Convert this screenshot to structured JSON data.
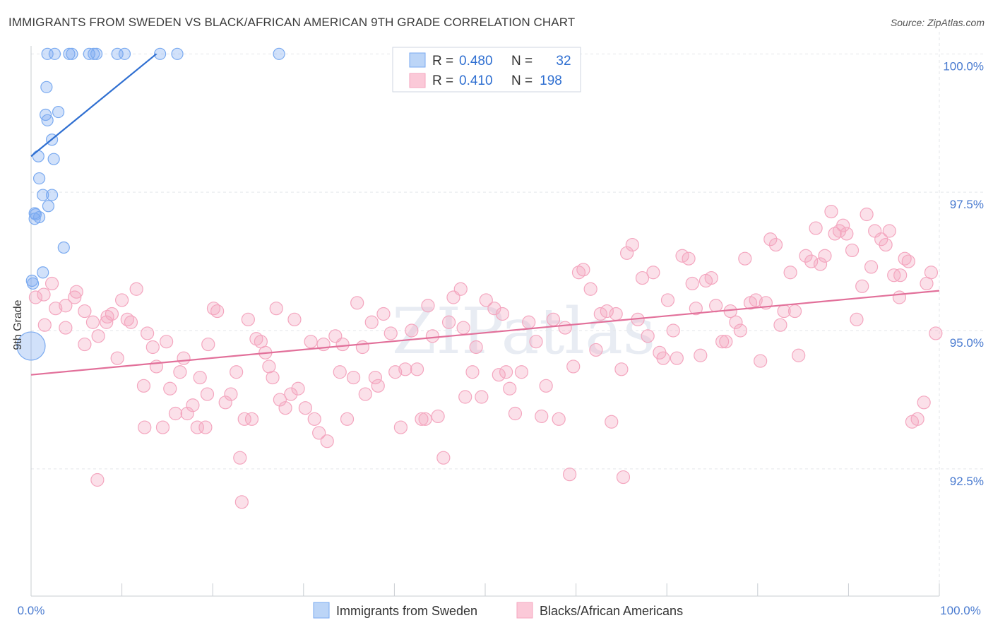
{
  "title": "IMMIGRANTS FROM SWEDEN VS BLACK/AFRICAN AMERICAN 9TH GRADE CORRELATION CHART",
  "source": "Source: ZipAtlas.com",
  "watermark": "ZIPatlas",
  "chart_data": {
    "type": "scatter",
    "ylabel": "9th Grade",
    "xlim": [
      0,
      100
    ],
    "ylim": [
      90.2,
      100.4
    ],
    "x_tick_labels": [
      "0.0%",
      "100.0%"
    ],
    "y_ticks": [
      {
        "value": 100.0,
        "label": "100.0%"
      },
      {
        "value": 97.5,
        "label": "97.5%"
      },
      {
        "value": 95.0,
        "label": "95.0%"
      },
      {
        "value": 92.5,
        "label": "92.5%"
      }
    ],
    "grid": true,
    "legend": {
      "r_label": "R =",
      "n_label": "N =",
      "entries": [
        {
          "r": "0.480",
          "n": "32",
          "color": "#7aaaf0"
        },
        {
          "r": "0.410",
          "n": "198",
          "color": "#f4a6bf"
        }
      ]
    },
    "series": [
      {
        "name": "Immigrants from Sweden",
        "color": "#7aaaf0",
        "trend": {
          "x": [
            0.0,
            13.8
          ],
          "y": [
            98.15,
            100.0
          ]
        },
        "points": [
          [
            1.8,
            100
          ],
          [
            2.6,
            100
          ],
          [
            4.2,
            100
          ],
          [
            4.5,
            100
          ],
          [
            6.4,
            100
          ],
          [
            6.9,
            100
          ],
          [
            7.2,
            100
          ],
          [
            9.5,
            100
          ],
          [
            10.3,
            100
          ],
          [
            14.2,
            100
          ],
          [
            16.1,
            100
          ],
          [
            27.3,
            100
          ],
          [
            1.7,
            99.4
          ],
          [
            1.6,
            98.9
          ],
          [
            3.0,
            98.95
          ],
          [
            1.8,
            98.8
          ],
          [
            2.3,
            98.45
          ],
          [
            2.5,
            98.1
          ],
          [
            0.8,
            98.15
          ],
          [
            0.9,
            97.75
          ],
          [
            1.3,
            97.45
          ],
          [
            2.3,
            97.45
          ],
          [
            1.9,
            97.25
          ],
          [
            0.4,
            97.12
          ],
          [
            0.5,
            97.1
          ],
          [
            0.9,
            97.05
          ],
          [
            0.4,
            97.02
          ],
          [
            3.6,
            96.5
          ],
          [
            1.3,
            96.05
          ],
          [
            0.1,
            95.9
          ],
          [
            0.2,
            95.85
          ],
          [
            0.0,
            94.72
          ]
        ]
      },
      {
        "name": "Blacks/African Americans",
        "color": "#f4a6bf",
        "trend": {
          "x": [
            0.0,
            100.0
          ],
          "y": [
            94.2,
            95.72
          ]
        },
        "points": [
          [
            0.5,
            95.6
          ],
          [
            1.4,
            95.65
          ],
          [
            2.3,
            95.85
          ],
          [
            2.7,
            95.4
          ],
          [
            3.8,
            95.45
          ],
          [
            4.8,
            95.6
          ],
          [
            5.0,
            95.7
          ],
          [
            1.5,
            95.1
          ],
          [
            3.8,
            95.05
          ],
          [
            5.9,
            95.35
          ],
          [
            6.8,
            95.15
          ],
          [
            7.4,
            94.9
          ],
          [
            5.9,
            94.75
          ],
          [
            8.4,
            95.25
          ],
          [
            8.3,
            95.15
          ],
          [
            8.9,
            95.3
          ],
          [
            9.5,
            94.5
          ],
          [
            10.0,
            95.55
          ],
          [
            10.6,
            95.2
          ],
          [
            11.0,
            95.15
          ],
          [
            11.6,
            95.75
          ],
          [
            12.4,
            94.0
          ],
          [
            12.5,
            93.25
          ],
          [
            12.8,
            94.95
          ],
          [
            13.4,
            94.7
          ],
          [
            13.8,
            94.35
          ],
          [
            14.5,
            93.25
          ],
          [
            14.9,
            94.8
          ],
          [
            15.3,
            93.95
          ],
          [
            15.9,
            93.5
          ],
          [
            16.4,
            94.25
          ],
          [
            16.8,
            94.5
          ],
          [
            17.2,
            93.5
          ],
          [
            17.8,
            93.65
          ],
          [
            18.3,
            93.25
          ],
          [
            18.6,
            94.15
          ],
          [
            19.2,
            93.25
          ],
          [
            19.4,
            93.85
          ],
          [
            19.5,
            94.75
          ],
          [
            20.1,
            95.4
          ],
          [
            20.5,
            95.35
          ],
          [
            21.4,
            93.7
          ],
          [
            22.0,
            93.85
          ],
          [
            22.6,
            94.25
          ],
          [
            23.0,
            92.7
          ],
          [
            23.5,
            93.4
          ],
          [
            23.9,
            95.2
          ],
          [
            24.3,
            93.4
          ],
          [
            24.8,
            94.85
          ],
          [
            25.3,
            94.8
          ],
          [
            25.8,
            94.6
          ],
          [
            26.2,
            94.35
          ],
          [
            26.6,
            94.15
          ],
          [
            27.0,
            95.4
          ],
          [
            27.4,
            93.75
          ],
          [
            28.0,
            93.6
          ],
          [
            28.6,
            93.85
          ],
          [
            29.0,
            95.2
          ],
          [
            29.4,
            93.95
          ],
          [
            30.2,
            93.6
          ],
          [
            30.8,
            94.8
          ],
          [
            31.2,
            93.4
          ],
          [
            31.7,
            93.15
          ],
          [
            32.2,
            94.75
          ],
          [
            32.6,
            93.0
          ],
          [
            33.5,
            94.9
          ],
          [
            34.0,
            94.25
          ],
          [
            34.3,
            94.75
          ],
          [
            34.8,
            93.4
          ],
          [
            35.5,
            94.15
          ],
          [
            35.9,
            95.5
          ],
          [
            36.5,
            94.7
          ],
          [
            36.8,
            93.85
          ],
          [
            37.5,
            95.15
          ],
          [
            37.9,
            94.15
          ],
          [
            38.2,
            94.0
          ],
          [
            38.8,
            95.3
          ],
          [
            39.6,
            94.95
          ],
          [
            40.1,
            94.25
          ],
          [
            40.7,
            93.25
          ],
          [
            41.2,
            94.3
          ],
          [
            41.9,
            95.0
          ],
          [
            42.5,
            94.3
          ],
          [
            43.0,
            93.4
          ],
          [
            43.7,
            95.45
          ],
          [
            44.2,
            94.9
          ],
          [
            44.8,
            93.45
          ],
          [
            45.4,
            92.7
          ],
          [
            46.0,
            95.15
          ],
          [
            46.5,
            95.6
          ],
          [
            47.3,
            95.75
          ],
          [
            47.8,
            93.8
          ],
          [
            48.6,
            94.25
          ],
          [
            49.0,
            94.7
          ],
          [
            49.6,
            93.8
          ],
          [
            50.1,
            95.55
          ],
          [
            51.0,
            95.4
          ],
          [
            51.5,
            94.2
          ],
          [
            51.9,
            95.3
          ],
          [
            52.3,
            94.25
          ],
          [
            52.7,
            93.95
          ],
          [
            53.3,
            93.5
          ],
          [
            54.0,
            94.25
          ],
          [
            54.8,
            95.15
          ],
          [
            55.6,
            94.8
          ],
          [
            56.2,
            93.45
          ],
          [
            56.7,
            94.0
          ],
          [
            57.5,
            95.2
          ],
          [
            58.1,
            93.4
          ],
          [
            58.8,
            95.05
          ],
          [
            59.3,
            92.4
          ],
          [
            59.7,
            94.35
          ],
          [
            60.3,
            96.05
          ],
          [
            60.8,
            96.1
          ],
          [
            61.6,
            95.75
          ],
          [
            62.2,
            94.65
          ],
          [
            62.7,
            95.3
          ],
          [
            63.4,
            95.35
          ],
          [
            63.9,
            93.35
          ],
          [
            64.4,
            95.3
          ],
          [
            65.0,
            94.3
          ],
          [
            65.6,
            96.4
          ],
          [
            66.2,
            96.55
          ],
          [
            66.8,
            95.2
          ],
          [
            67.3,
            95.95
          ],
          [
            67.9,
            94.9
          ],
          [
            68.5,
            96.05
          ],
          [
            69.2,
            94.6
          ],
          [
            69.6,
            94.5
          ],
          [
            70.1,
            95.55
          ],
          [
            70.7,
            95.0
          ],
          [
            71.1,
            94.5
          ],
          [
            71.7,
            96.35
          ],
          [
            72.4,
            96.3
          ],
          [
            72.8,
            95.85
          ],
          [
            73.2,
            95.4
          ],
          [
            73.7,
            94.55
          ],
          [
            74.3,
            95.9
          ],
          [
            74.9,
            95.95
          ],
          [
            75.4,
            95.45
          ],
          [
            76.1,
            94.8
          ],
          [
            76.5,
            94.8
          ],
          [
            77.0,
            95.35
          ],
          [
            77.6,
            95.15
          ],
          [
            78.1,
            95.0
          ],
          [
            78.6,
            96.3
          ],
          [
            79.2,
            95.5
          ],
          [
            79.8,
            95.55
          ],
          [
            80.3,
            94.45
          ],
          [
            80.9,
            95.5
          ],
          [
            81.4,
            96.65
          ],
          [
            82.0,
            96.55
          ],
          [
            82.5,
            95.1
          ],
          [
            82.9,
            95.35
          ],
          [
            83.6,
            96.05
          ],
          [
            84.1,
            95.35
          ],
          [
            84.5,
            94.55
          ],
          [
            85.3,
            96.35
          ],
          [
            85.9,
            96.25
          ],
          [
            86.4,
            96.85
          ],
          [
            86.9,
            96.2
          ],
          [
            87.4,
            96.35
          ],
          [
            88.1,
            97.15
          ],
          [
            88.5,
            96.75
          ],
          [
            89.0,
            96.8
          ],
          [
            89.4,
            96.9
          ],
          [
            89.8,
            96.75
          ],
          [
            90.4,
            96.45
          ],
          [
            90.9,
            95.2
          ],
          [
            91.5,
            95.8
          ],
          [
            92.0,
            97.1
          ],
          [
            92.5,
            96.15
          ],
          [
            92.9,
            96.8
          ],
          [
            93.6,
            96.65
          ],
          [
            94.1,
            96.55
          ],
          [
            94.5,
            96.8
          ],
          [
            95.0,
            96.0
          ],
          [
            95.6,
            95.6
          ],
          [
            95.7,
            96.0
          ],
          [
            96.2,
            96.3
          ],
          [
            96.6,
            96.25
          ],
          [
            97.0,
            93.35
          ],
          [
            97.6,
            93.4
          ],
          [
            98.3,
            93.7
          ],
          [
            98.6,
            95.85
          ],
          [
            99.1,
            96.05
          ],
          [
            99.6,
            94.95
          ],
          [
            7.3,
            92.3
          ],
          [
            23.2,
            91.9
          ],
          [
            65.2,
            92.35
          ],
          [
            43.4,
            93.4
          ],
          [
            47.6,
            95.05
          ]
        ]
      }
    ]
  },
  "bottom_legend": [
    "Immigrants from Sweden",
    "Blacks/African Americans"
  ]
}
